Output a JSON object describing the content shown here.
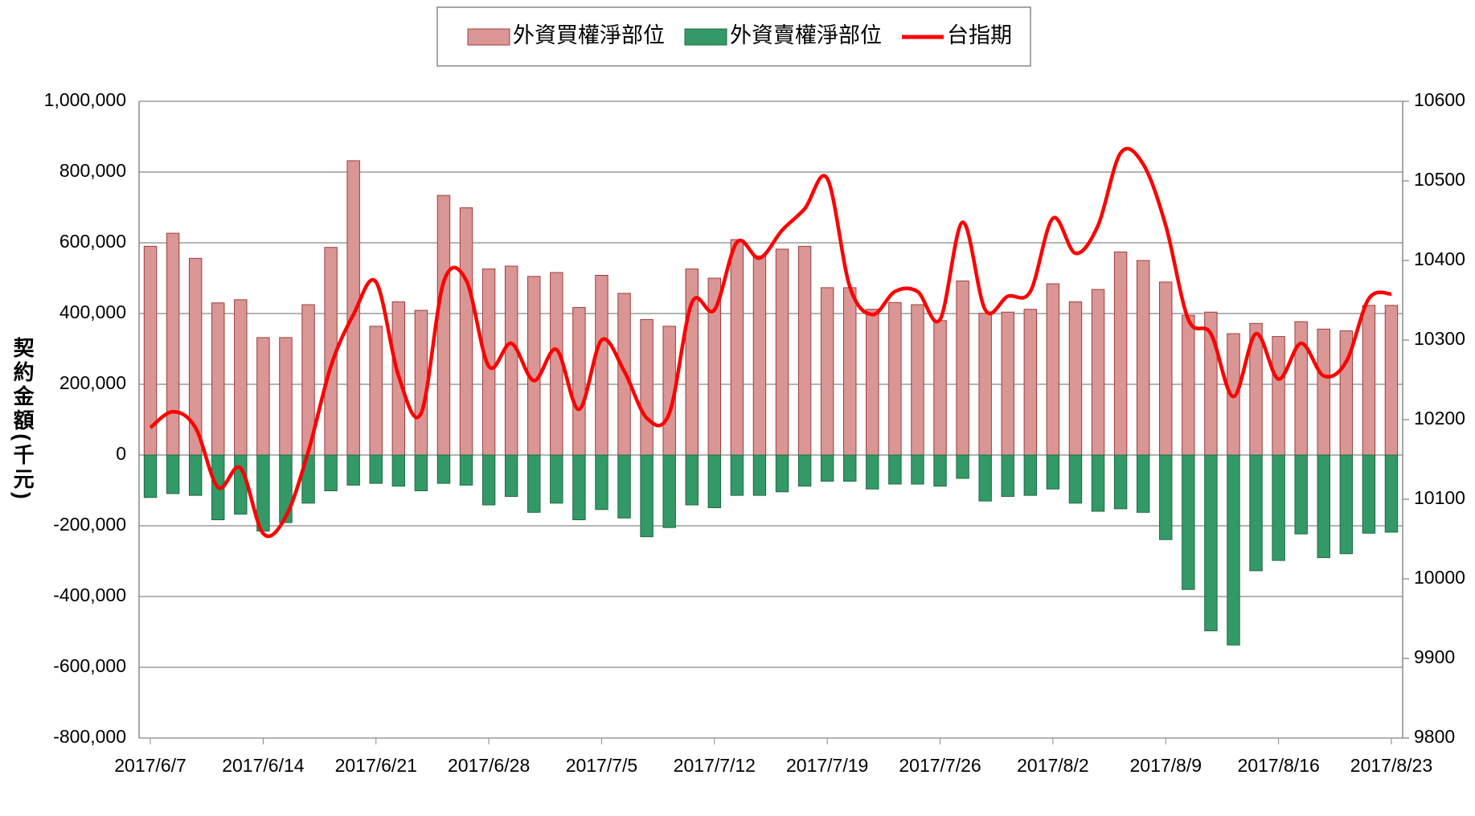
{
  "chart_data": {
    "type": "bar-line",
    "y_label": "契約金額(千元)",
    "categories": [
      "2017/6/7",
      null,
      null,
      null,
      null,
      "2017/6/14",
      null,
      null,
      null,
      null,
      "2017/6/21",
      null,
      null,
      null,
      null,
      "2017/6/28",
      null,
      null,
      null,
      null,
      "2017/7/5",
      null,
      null,
      null,
      null,
      "2017/7/12",
      null,
      null,
      null,
      null,
      "2017/7/19",
      null,
      null,
      null,
      null,
      "2017/7/26",
      null,
      null,
      null,
      null,
      "2017/8/2",
      null,
      null,
      null,
      null,
      "2017/8/9",
      null,
      null,
      null,
      null,
      "2017/8/16",
      null,
      null,
      null,
      null,
      "2017/8/23"
    ],
    "series": [
      {
        "name": "外資買權淨部位",
        "color": "#d99694",
        "stroke": "#a03c3c",
        "kind": "bar",
        "values": [
          590000,
          627000,
          556000,
          430000,
          439000,
          332000,
          332000,
          425000,
          587000,
          832000,
          364000,
          433000,
          409000,
          734000,
          699000,
          526000,
          534000,
          505000,
          516000,
          417000,
          508000,
          457000,
          383000,
          364000,
          526000,
          500000,
          609000,
          563000,
          582000,
          590000,
          473000,
          473000,
          412000,
          431000,
          425000,
          380000,
          492000,
          401000,
          404000,
          412000,
          484000,
          433000,
          468000,
          574000,
          550000,
          489000,
          395000,
          404000,
          343000,
          372000,
          335000,
          377000,
          356000,
          351000,
          423000,
          423000
        ]
      },
      {
        "name": "外資賣權淨部位",
        "color": "#339966",
        "stroke": "#1e6b44",
        "kind": "bar",
        "values": [
          -120000,
          -109000,
          -114000,
          -183000,
          -167000,
          -215000,
          -191000,
          -136000,
          -101000,
          -85000,
          -80000,
          -88000,
          -101000,
          -80000,
          -85000,
          -141000,
          -117000,
          -162000,
          -136000,
          -183000,
          -154000,
          -178000,
          -231000,
          -205000,
          -141000,
          -149000,
          -114000,
          -114000,
          -104000,
          -88000,
          -74000,
          -74000,
          -96000,
          -82000,
          -82000,
          -88000,
          -66000,
          -130000,
          -117000,
          -114000,
          -96000,
          -136000,
          -159000,
          -152000,
          -162000,
          -239000,
          -380000,
          -497000,
          -537000,
          -327000,
          -298000,
          -223000,
          -290000,
          -279000,
          -221000,
          -218000
        ]
      },
      {
        "name": "台指期",
        "color": "#ff0000",
        "kind": "line",
        "axis": "y2",
        "values": [
          10190,
          10210,
          10190,
          10115,
          10139,
          10057,
          10078,
          10160,
          10267,
          10332,
          10373,
          10255,
          10208,
          10373,
          10375,
          10267,
          10296,
          10249,
          10288,
          10213,
          10300,
          10261,
          10202,
          10208,
          10347,
          10338,
          10423,
          10403,
          10438,
          10465,
          10503,
          10367,
          10332,
          10361,
          10361,
          10326,
          10448,
          10338,
          10355,
          10361,
          10453,
          10409,
          10444,
          10535,
          10521,
          10444,
          10326,
          10308,
          10229,
          10308,
          10251,
          10296,
          10255,
          10273,
          10352,
          10358
        ]
      }
    ],
    "ylim": [
      -800000,
      1000000
    ],
    "yticks": [
      {
        "value": -800000,
        "label": "-800,000"
      },
      {
        "value": -600000,
        "label": "-600,000"
      },
      {
        "value": -400000,
        "label": "-400,000"
      },
      {
        "value": -200000,
        "label": "-200,000"
      },
      0,
      {
        "value": 200000,
        "label": "200,000"
      },
      {
        "value": 400000,
        "label": "400,000"
      },
      {
        "value": 600000,
        "label": "600,000"
      },
      {
        "value": 800000,
        "label": "800,000"
      },
      {
        "value": 1000000,
        "label": "1,000,000"
      }
    ],
    "y2lim": [
      9800,
      10600
    ],
    "y2ticks": [
      9800,
      9900,
      10000,
      10100,
      10200,
      10300,
      10400,
      10500,
      10600
    ],
    "grid": true,
    "legend": "top"
  }
}
